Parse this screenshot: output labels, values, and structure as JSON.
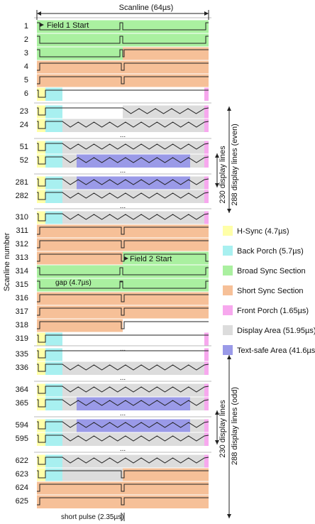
{
  "header": {
    "title": "Scanline (64µs)"
  },
  "y_axis_label": "Scanline number",
  "annotations": {
    "field1": "Field 1 Start",
    "field2": "Field 2 Start",
    "gap": "gap (4.7µs)",
    "short_pulse": "short pulse (2.35µs)",
    "display_even": "288 display  lines (even)",
    "display_odd": "288 display lines (odd)",
    "bracket_even": "230 display lines",
    "bracket_odd": "230 display lines",
    "ellipsis": "..."
  },
  "legend": [
    {
      "label": "H-Sync (4.7µs)",
      "color": "#ffffa8"
    },
    {
      "label": "Back Porch (5.7µs)",
      "color": "#a8f0f0"
    },
    {
      "label": "Broad Sync Section",
      "color": "#aaf0a0"
    },
    {
      "label": "Short Sync Section",
      "color": "#f6c098"
    },
    {
      "label": "Front Porch (1.65µs)",
      "color": "#f7a8ee"
    },
    {
      "label": "Display Area (51.95µs)",
      "color": "#dcdcdc"
    },
    {
      "label": "Text-safe Area (41.6µs)",
      "color": "#9a9ae8"
    }
  ],
  "groups": [
    {
      "lines": [
        "1",
        "2",
        "3",
        "4",
        "5",
        "6"
      ]
    },
    {
      "lines": [
        "23",
        "24"
      ]
    },
    {
      "lines": [
        "51",
        "52"
      ]
    },
    {
      "lines": [
        "281",
        "282"
      ]
    },
    {
      "lines": [
        "310",
        "311",
        "312",
        "313",
        "314",
        "315",
        "316",
        "317",
        "318",
        "319"
      ]
    },
    {
      "lines": [
        "335",
        "336"
      ]
    },
    {
      "lines": [
        "364",
        "365"
      ]
    },
    {
      "lines": [
        "594",
        "595"
      ]
    },
    {
      "lines": [
        "622",
        "623",
        "624",
        "625"
      ]
    }
  ]
}
